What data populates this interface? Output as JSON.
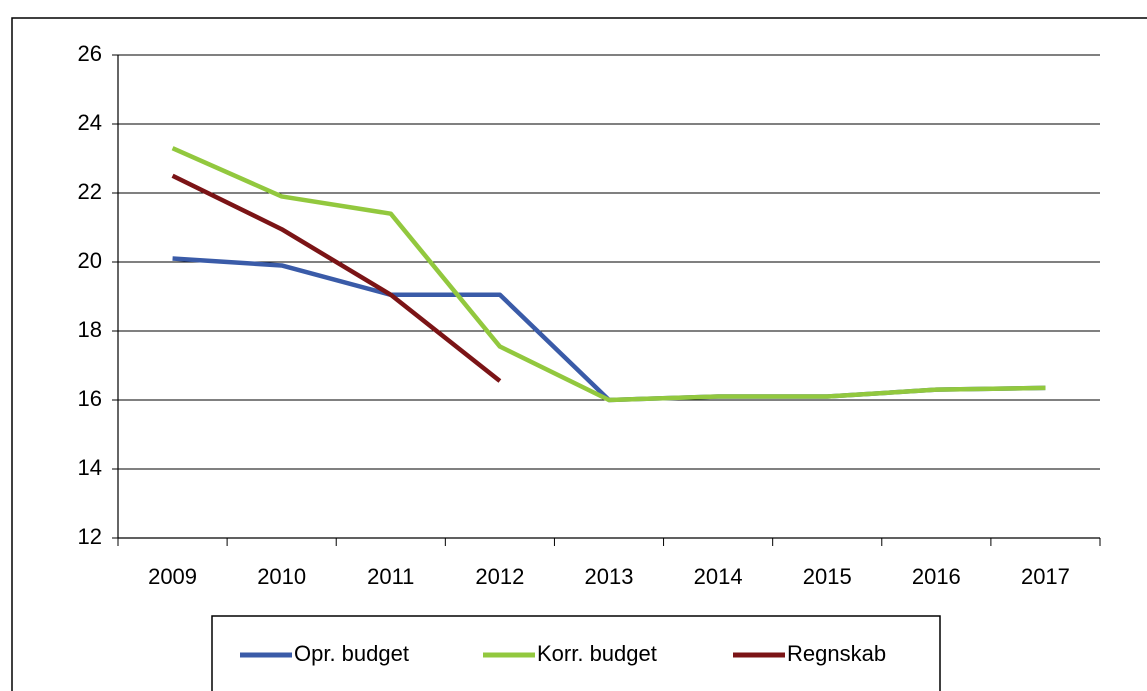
{
  "chart_data": {
    "type": "line",
    "categories": [
      "2009",
      "2010",
      "2011",
      "2012",
      "2013",
      "2014",
      "2015",
      "2016",
      "2017"
    ],
    "series": [
      {
        "name": "Opr. budget",
        "color": "#3a5ba8",
        "values": [
          20.1,
          19.9,
          19.05,
          19.05,
          16.0,
          16.1,
          16.1,
          16.3,
          16.35
        ]
      },
      {
        "name": "Korr. budget",
        "color": "#92c83e",
        "values": [
          23.3,
          21.9,
          21.4,
          17.55,
          16.0,
          16.1,
          16.1,
          16.3,
          16.35
        ]
      },
      {
        "name": "Regnskab",
        "color": "#7b1416",
        "values": [
          22.5,
          20.95,
          19.05,
          16.55,
          null,
          null,
          null,
          null,
          null
        ]
      }
    ],
    "ylim": [
      12,
      26
    ],
    "yticks": [
      12,
      14,
      16,
      18,
      20,
      22,
      24,
      26
    ],
    "grid": true,
    "legend": "bottom"
  }
}
